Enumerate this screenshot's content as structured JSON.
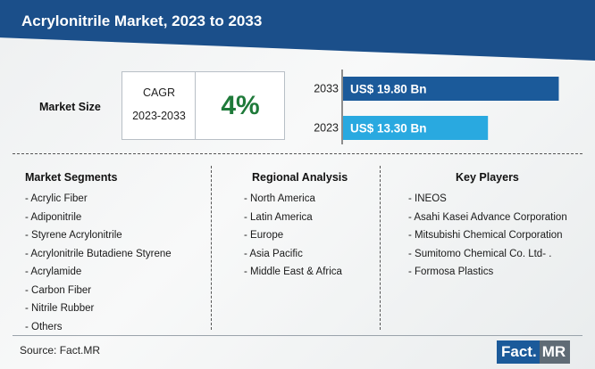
{
  "header": {
    "title": "Acrylonitrile Market, 2023 to 2033"
  },
  "market_size": {
    "label": "Market Size",
    "cagr_label": "CAGR",
    "cagr_period": "2023-2033",
    "cagr_value": "4%"
  },
  "colors": {
    "header_blue": "#1b4f8a",
    "bar_2033": "#1b5a9a",
    "bar_2023": "#29a9e0",
    "cagr_green": "#1f7a3a"
  },
  "chart_data": {
    "type": "bar",
    "orientation": "horizontal",
    "categories": [
      "2033",
      "2023"
    ],
    "values": [
      19.8,
      13.3
    ],
    "value_labels": [
      "US$ 19.80 Bn",
      "US$ 13.30 Bn"
    ],
    "unit": "US$ Bn",
    "title": "",
    "xlabel": "",
    "ylabel": "",
    "xlim": [
      0,
      20.5
    ],
    "grid": false
  },
  "segments": {
    "title": "Market Segments",
    "items": [
      "- Acrylic Fiber",
      "- Adiponitrile",
      "- Styrene Acrylonitrile",
      "- Acrylonitrile Butadiene Styrene",
      "- Acrylamide",
      "- Carbon Fiber",
      "- Nitrile Rubber",
      "- Others"
    ]
  },
  "regions": {
    "title": "Regional Analysis",
    "items": [
      "- North America",
      "- Latin America",
      "- Europe",
      "- Asia Pacific",
      "- Middle East & Africa"
    ]
  },
  "players": {
    "title": "Key Players",
    "items": [
      "- INEOS",
      "- Asahi Kasei Advance Corporation",
      "- Mitsubishi Chemical Corporation",
      "- Sumitomo Chemical Co. Ltd- .",
      "- Formosa Plastics"
    ]
  },
  "footer": {
    "source": "Source: Fact.MR",
    "logo_fact": "Fact.",
    "logo_mr": "MR"
  }
}
